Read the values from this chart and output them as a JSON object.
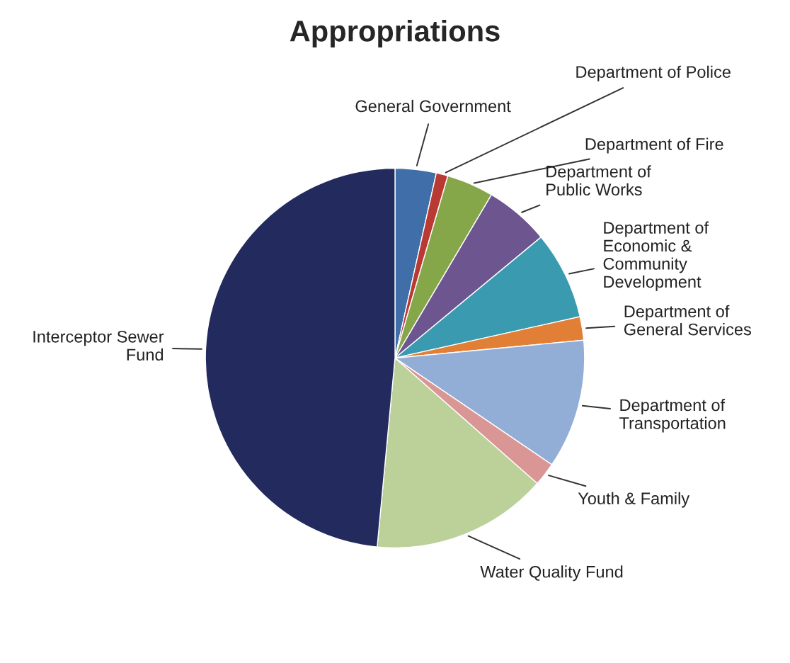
{
  "chart_data": {
    "type": "pie",
    "title": "Appropriations",
    "categories": [
      "General Government",
      "Department of Police",
      "Department of Fire",
      "Department of\nPublic Works",
      "Department of\nEconomic &\nCommunity\nDevelopment",
      "Department of\nGeneral Services",
      "Department of\nTransportation",
      "Youth & Family",
      "Water Quality Fund",
      "Interceptor Sewer\nFund"
    ],
    "values": [
      3.5,
      1,
      4,
      5.5,
      7.5,
      2,
      11,
      2,
      15,
      48.5
    ],
    "colors": [
      "#3f6ea8",
      "#b83a33",
      "#86a64a",
      "#6d5690",
      "#3a9bb0",
      "#e07f35",
      "#93aed6",
      "#d99694",
      "#bcd19a",
      "#232b5e"
    ]
  }
}
